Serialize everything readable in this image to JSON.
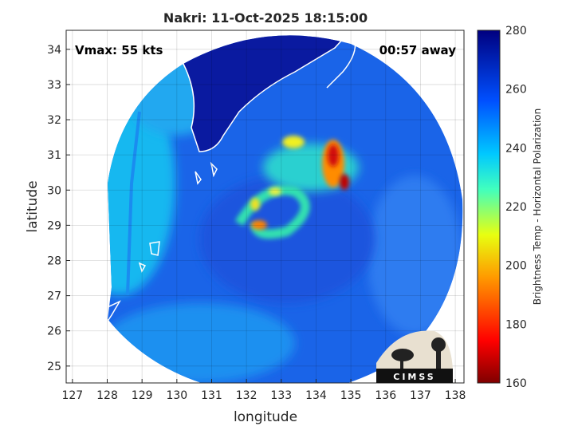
{
  "title": "Nakri: 11-Oct-2025 18:15:00",
  "vmax_label": "Vmax: 55 kts",
  "time_label": "00:57 away",
  "x_axis": {
    "label": "longitude",
    "lim": [
      126.82,
      138.25
    ],
    "ticks": [
      127,
      128,
      129,
      130,
      131,
      132,
      133,
      134,
      135,
      136,
      137,
      138
    ]
  },
  "y_axis": {
    "label": "latitude",
    "lim": [
      24.52,
      34.54
    ],
    "ticks": [
      25,
      26,
      27,
      28,
      29,
      30,
      31,
      32,
      33,
      34
    ]
  },
  "colorbar": {
    "label": "Brightness Temp - Horizontal Polarization",
    "lim": [
      160,
      280
    ],
    "ticks": [
      160,
      180,
      200,
      220,
      240,
      260,
      280
    ]
  },
  "logo": "CIMSS"
}
